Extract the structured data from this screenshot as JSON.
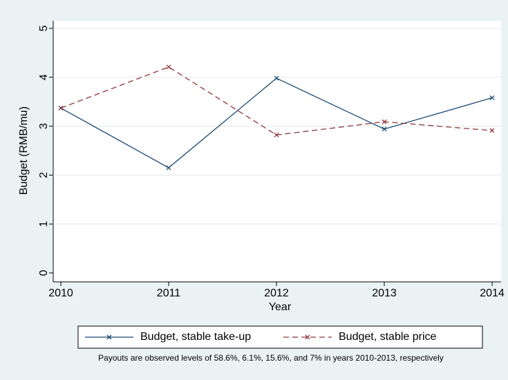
{
  "chart_data": {
    "type": "line",
    "x": [
      2010,
      2011,
      2012,
      2013,
      2014
    ],
    "series": [
      {
        "name": "Budget, stable take-up",
        "color": "#1a476f",
        "dash": false,
        "values": [
          3.37,
          2.15,
          3.98,
          2.94,
          3.58
        ]
      },
      {
        "name": "Budget, stable price",
        "color": "#90353b",
        "dash": true,
        "values": [
          3.37,
          4.21,
          2.82,
          3.09,
          2.91
        ]
      }
    ],
    "xlim": [
      2010,
      2014
    ],
    "xticks": [
      2010,
      2011,
      2012,
      2013,
      2014
    ],
    "ylim": [
      0,
      5
    ],
    "yticks": [
      0,
      1,
      2,
      3,
      4,
      5
    ],
    "xlabel": "Year",
    "ylabel": "Budget (RMB/mu)",
    "grid": true,
    "note": "Payouts are observed levels of 58.6%, 6.1%, 15.6%, and 7% in years 2010-2013, respectively"
  }
}
